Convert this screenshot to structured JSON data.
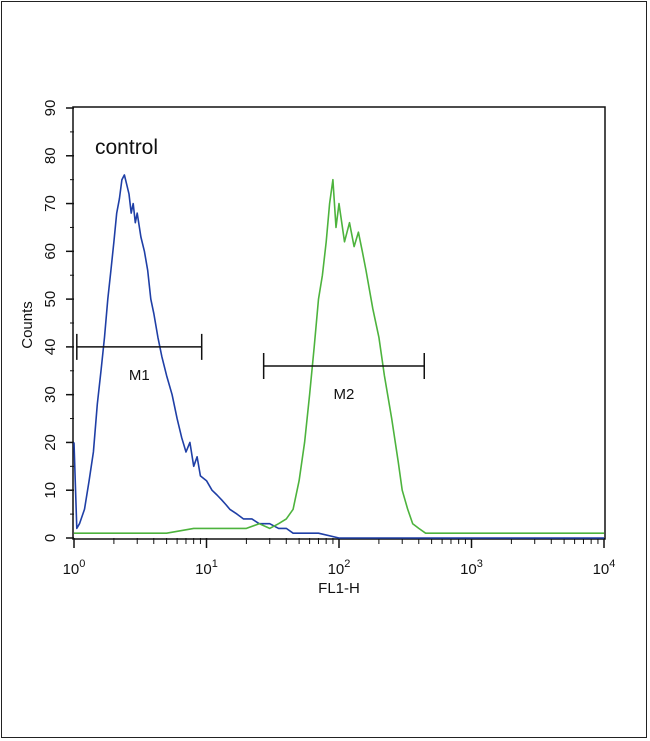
{
  "chart_data": {
    "type": "line",
    "title": "",
    "xlabel": "FL1-H",
    "ylabel": "Counts",
    "x_scale": "log",
    "xlim": [
      1,
      10000
    ],
    "ylim": [
      0,
      90
    ],
    "y_ticks": [
      "0",
      "10",
      "20",
      "30",
      "40",
      "50",
      "60",
      "70",
      "80",
      "90"
    ],
    "x_ticks": [
      {
        "base": "10",
        "exp": "0"
      },
      {
        "base": "10",
        "exp": "1"
      },
      {
        "base": "10",
        "exp": "2"
      },
      {
        "base": "10",
        "exp": "3"
      },
      {
        "base": "10",
        "exp": "4"
      }
    ],
    "annotation": "control",
    "grid": false,
    "series": [
      {
        "color": "#1f3fa6",
        "x": [
          1.0,
          1.05,
          1.1,
          1.2,
          1.3,
          1.4,
          1.5,
          1.6,
          1.7,
          1.8,
          1.9,
          2.0,
          2.1,
          2.2,
          2.3,
          2.4,
          2.5,
          2.6,
          2.7,
          2.8,
          2.9,
          3.0,
          3.2,
          3.4,
          3.6,
          3.8,
          4.0,
          4.3,
          4.6,
          5.0,
          5.5,
          6.0,
          6.5,
          7.0,
          7.5,
          8.0,
          8.5,
          9.0,
          10.0,
          11.0,
          12.0,
          13.0,
          14.0,
          15.0,
          17.0,
          19.0,
          22.0,
          25.0,
          30.0,
          35.0,
          40.0,
          45.0,
          55.0,
          70.0,
          100.0,
          200.0,
          500.0,
          1000.0,
          3000.0,
          10000.0
        ],
        "y": [
          20,
          2,
          3,
          6,
          12,
          18,
          28,
          35,
          42,
          50,
          56,
          62,
          68,
          71,
          75,
          76,
          74,
          72,
          68,
          70,
          66,
          68,
          63,
          60,
          56,
          50,
          47,
          42,
          38,
          34,
          30,
          25,
          21,
          18,
          20,
          15,
          17,
          13,
          12,
          10,
          9,
          8,
          7,
          6,
          5,
          4,
          4,
          3,
          3,
          2,
          2,
          1,
          1,
          1,
          0,
          0,
          0,
          0,
          0,
          0
        ]
      },
      {
        "color": "#4db33d",
        "x": [
          1.0,
          2.0,
          3.0,
          5.0,
          8.0,
          10.0,
          15.0,
          20.0,
          25.0,
          30.0,
          35.0,
          40.0,
          45.0,
          50.0,
          55.0,
          60.0,
          65.0,
          70.0,
          75.0,
          80.0,
          85.0,
          90.0,
          95.0,
          100.0,
          110.0,
          120.0,
          130.0,
          140.0,
          150.0,
          160.0,
          180.0,
          200.0,
          220.0,
          250.0,
          280.0,
          300.0,
          330.0,
          360.0,
          400.0,
          450.0,
          500.0,
          1000.0,
          3000.0,
          10000.0
        ],
        "y": [
          1,
          1,
          1,
          1,
          2,
          2,
          2,
          2,
          3,
          2,
          3,
          4,
          6,
          12,
          20,
          30,
          40,
          50,
          55,
          62,
          70,
          75,
          65,
          70,
          62,
          66,
          61,
          64,
          60,
          56,
          48,
          42,
          34,
          25,
          16,
          10,
          6,
          3,
          2,
          1,
          1,
          1,
          1,
          1
        ]
      }
    ],
    "markers": [
      {
        "label": "M1",
        "x_start": 1.05,
        "x_end": 9.2,
        "y": 40
      },
      {
        "label": "M2",
        "x_start": 27.0,
        "x_end": 440.0,
        "y": 36
      }
    ]
  }
}
